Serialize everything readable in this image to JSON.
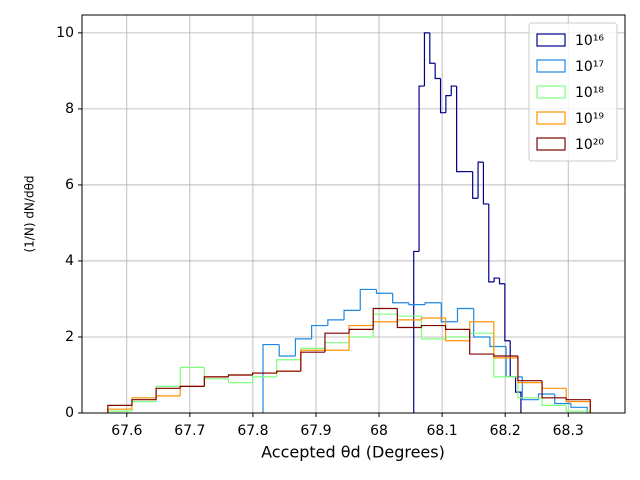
{
  "chart_data": {
    "type": "histogram",
    "x_label": "Accepted θd (Degrees)",
    "y_label": "(1/N) dN/dθd",
    "xlim": [
      67.529,
      68.39
    ],
    "ylim": [
      0,
      10.47
    ],
    "xticks": [
      67.6,
      67.7,
      67.8,
      67.9,
      68.0,
      68.1,
      68.2,
      68.3
    ],
    "yticks": [
      0,
      2,
      4,
      6,
      8,
      10
    ],
    "grid": true,
    "legend": "upper right",
    "series": [
      {
        "name": "10¹⁶",
        "color": "#00008b",
        "bins": [
          68.055,
          68.0635,
          68.072,
          68.0805,
          68.089,
          68.0975,
          68.106,
          68.1145,
          68.123,
          68.1315,
          68.14,
          68.1485,
          68.157,
          68.1655,
          68.174,
          68.1825,
          68.191,
          68.1995,
          68.208,
          68.2165,
          68.225
        ],
        "values": [
          4.25,
          8.6,
          10.0,
          9.2,
          8.8,
          7.9,
          8.35,
          8.6,
          6.35,
          6.35,
          6.35,
          5.65,
          6.6,
          5.5,
          3.45,
          3.55,
          3.4,
          1.9,
          0.95,
          0.55
        ]
      },
      {
        "name": "10¹⁷",
        "color": "#1e88e5",
        "bins": [
          67.816,
          67.8417,
          67.8674,
          67.8931,
          67.9188,
          67.9445,
          67.9702,
          67.9959,
          68.0216,
          68.0473,
          68.073,
          68.0987,
          68.1244,
          68.1501,
          68.1758,
          68.2015,
          68.2272,
          68.2529,
          68.2786,
          68.3043,
          68.33
        ],
        "values": [
          1.8,
          1.5,
          1.95,
          2.3,
          2.45,
          2.7,
          3.25,
          3.15,
          2.9,
          2.85,
          2.9,
          2.4,
          2.75,
          2.0,
          1.75,
          0.95,
          0.35,
          0.5,
          0.25,
          0.15
        ]
      },
      {
        "name": "10¹⁸",
        "color": "#7fff7f",
        "bins": [
          67.57,
          67.60825,
          67.6465,
          67.68475,
          67.723,
          67.76125,
          67.7995,
          67.83775,
          67.876,
          67.91425,
          67.9525,
          67.99075,
          68.029,
          68.06725,
          68.1055,
          68.14375,
          68.182,
          68.22025,
          68.2585,
          68.29675,
          68.335
        ],
        "values": [
          0.05,
          0.3,
          0.7,
          1.2,
          0.9,
          0.8,
          0.95,
          1.4,
          1.7,
          1.85,
          2.0,
          2.6,
          2.55,
          1.95,
          2.0,
          2.1,
          0.95,
          0.4,
          0.2,
          0.05
        ]
      },
      {
        "name": "10¹⁹",
        "color": "#ff9400",
        "bins": [
          67.57,
          67.60825,
          67.6465,
          67.68475,
          67.723,
          67.76125,
          67.7995,
          67.83775,
          67.876,
          67.91425,
          67.9525,
          67.99075,
          68.029,
          68.06725,
          68.1055,
          68.14375,
          68.182,
          68.22025,
          68.2585,
          68.29675,
          68.335
        ],
        "values": [
          0.1,
          0.4,
          0.45,
          0.7,
          0.95,
          1.0,
          1.05,
          1.1,
          1.65,
          1.65,
          2.3,
          2.4,
          2.45,
          2.5,
          1.9,
          2.4,
          1.45,
          0.8,
          0.65,
          0.3
        ]
      },
      {
        "name": "10²⁰",
        "color": "#800000",
        "bins": [
          67.57,
          67.60825,
          67.6465,
          67.68475,
          67.723,
          67.76125,
          67.7995,
          67.83775,
          67.876,
          67.91425,
          67.9525,
          67.99075,
          68.029,
          68.06725,
          68.1055,
          68.14375,
          68.182,
          68.22025,
          68.2585,
          68.29675,
          68.335
        ],
        "values": [
          0.2,
          0.35,
          0.65,
          0.7,
          0.95,
          1.0,
          1.05,
          1.1,
          1.6,
          2.1,
          2.2,
          2.75,
          2.25,
          2.3,
          2.2,
          1.55,
          1.5,
          0.85,
          0.4,
          0.35
        ]
      }
    ]
  }
}
